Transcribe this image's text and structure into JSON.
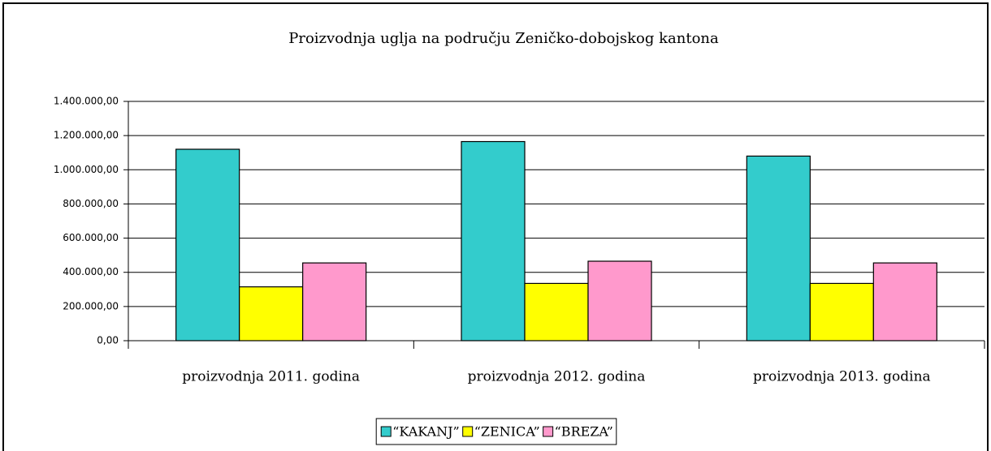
{
  "chart_data": {
    "type": "bar",
    "title": "Proizvodnja uglja na području Zeničko-dobojskog kantona",
    "categories": [
      "proizvodnja 2011. godina",
      "proizvodnja 2012. godina",
      "proizvodnja 2013. godina"
    ],
    "series": [
      {
        "name": "“KAKANJ”",
        "color": "#33cccc",
        "values": [
          1120000,
          1165000,
          1080000
        ]
      },
      {
        "name": "“ZENICA”",
        "color": "#ffff00",
        "values": [
          315000,
          335000,
          335000
        ]
      },
      {
        "name": "“BREZA”",
        "color": "#ff99cc",
        "values": [
          455000,
          465000,
          455000
        ]
      }
    ],
    "ylim": [
      0,
      1400000
    ],
    "yticks": [
      {
        "value": 0,
        "label": "0,00"
      },
      {
        "value": 200000,
        "label": "200.000,00"
      },
      {
        "value": 400000,
        "label": "400.000,00"
      },
      {
        "value": 600000,
        "label": "600.000,00"
      },
      {
        "value": 800000,
        "label": "800.000,00"
      },
      {
        "value": 1000000,
        "label": "1.000.000,00"
      },
      {
        "value": 1200000,
        "label": "1.200.000,00"
      },
      {
        "value": 1400000,
        "label": "1.400.000,00"
      }
    ],
    "grid": true,
    "legend": "bottom"
  }
}
